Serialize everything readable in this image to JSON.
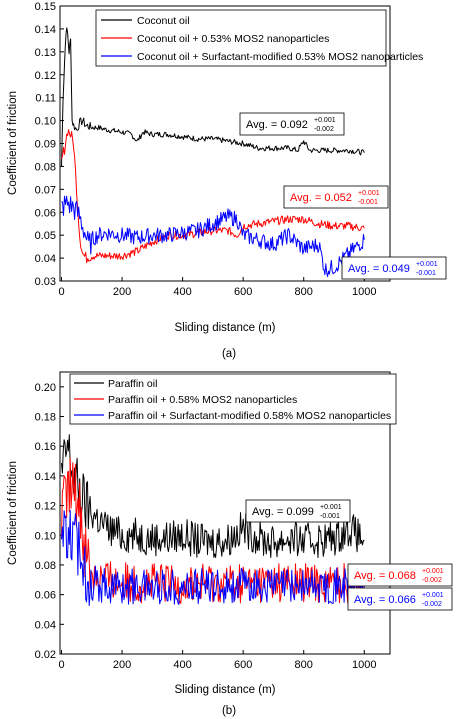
{
  "chart_data": [
    {
      "type": "line",
      "panel_label": "(a)",
      "xlabel": "Sliding distance (m)",
      "ylabel": "Coefficient of friction",
      "xlim": [
        0,
        1000
      ],
      "ylim": [
        0.03,
        0.15
      ],
      "xticks": [
        "0",
        "200",
        "400",
        "600",
        "800",
        "1000"
      ],
      "yticks": [
        "0.03",
        "0.04",
        "0.05",
        "0.06",
        "0.07",
        "0.08",
        "0.09",
        "0.10",
        "0.11",
        "0.12",
        "0.13",
        "0.14",
        "0.15"
      ],
      "legend_position": "top-right",
      "series": [
        {
          "name": "Coconut oil",
          "color": "#000000",
          "x": [
            0,
            5,
            10,
            15,
            20,
            25,
            30,
            35,
            40,
            50,
            60,
            70,
            80,
            100,
            120,
            150,
            200,
            230,
            250,
            270,
            300,
            350,
            400,
            450,
            500,
            550,
            600,
            650,
            700,
            750,
            780,
            800,
            820,
            850,
            900,
            950,
            1000
          ],
          "y": [
            0.08,
            0.11,
            0.125,
            0.14,
            0.138,
            0.13,
            0.135,
            0.1,
            0.098,
            0.096,
            0.099,
            0.1,
            0.098,
            0.097,
            0.097,
            0.096,
            0.095,
            0.094,
            0.091,
            0.095,
            0.094,
            0.094,
            0.093,
            0.092,
            0.092,
            0.091,
            0.09,
            0.088,
            0.088,
            0.088,
            0.087,
            0.091,
            0.087,
            0.087,
            0.087,
            0.087,
            0.086
          ]
        },
        {
          "name": "Coconut oil + 0.53% MOS2 nanoparticles",
          "color": "#ff0000",
          "x": [
            0,
            10,
            20,
            30,
            40,
            50,
            60,
            70,
            80,
            90,
            100,
            120,
            150,
            200,
            250,
            300,
            350,
            400,
            450,
            500,
            550,
            580,
            600,
            650,
            700,
            750,
            800,
            850,
            900,
            950,
            1000
          ],
          "y": [
            0.082,
            0.088,
            0.096,
            0.094,
            0.09,
            0.07,
            0.05,
            0.042,
            0.04,
            0.041,
            0.041,
            0.041,
            0.041,
            0.041,
            0.043,
            0.047,
            0.05,
            0.05,
            0.051,
            0.052,
            0.052,
            0.05,
            0.054,
            0.055,
            0.056,
            0.057,
            0.057,
            0.055,
            0.054,
            0.054,
            0.053
          ]
        },
        {
          "name": "Coconut oil + Surfactant-modified 0.53% MOS2 nanoparticles",
          "color": "#0000ff",
          "x": [
            0,
            10,
            20,
            30,
            40,
            50,
            60,
            70,
            80,
            90,
            100,
            120,
            150,
            200,
            250,
            300,
            350,
            400,
            450,
            500,
            550,
            580,
            600,
            650,
            700,
            750,
            800,
            850,
            870,
            900,
            950,
            1000
          ],
          "y": [
            0.062,
            0.063,
            0.064,
            0.063,
            0.062,
            0.06,
            0.058,
            0.054,
            0.05,
            0.045,
            0.048,
            0.05,
            0.051,
            0.05,
            0.049,
            0.05,
            0.05,
            0.051,
            0.052,
            0.055,
            0.058,
            0.057,
            0.05,
            0.048,
            0.046,
            0.05,
            0.044,
            0.046,
            0.035,
            0.036,
            0.042,
            0.048
          ]
        }
      ],
      "annotations": [
        {
          "prefix": "Avg. = ",
          "value": "0.092",
          "sup": "+0.001",
          "sub": "-0.002",
          "color": "#000000"
        },
        {
          "prefix": "Avg. = ",
          "value": "0.052",
          "sup": "+0.001",
          "sub": "-0.001",
          "color": "#ff0000"
        },
        {
          "prefix": "Avg. = ",
          "value": "0.049",
          "sup": "+0.001",
          "sub": "-0.001",
          "color": "#0000ff"
        }
      ]
    },
    {
      "type": "line",
      "panel_label": "(b)",
      "xlabel": "Sliding distance (m)",
      "ylabel": "Coefficient of friction",
      "xlim": [
        0,
        1000
      ],
      "ylim": [
        0.02,
        0.21
      ],
      "xticks": [
        "0",
        "200",
        "400",
        "600",
        "800",
        "1000"
      ],
      "yticks": [
        "0.02",
        "0.04",
        "0.06",
        "0.08",
        "0.10",
        "0.12",
        "0.14",
        "0.16",
        "0.18",
        "0.20"
      ],
      "legend_position": "top-right",
      "series": [
        {
          "name": "Paraffin oil",
          "color": "#000000",
          "x": [
            0,
            20,
            40,
            60,
            80,
            100,
            150,
            200,
            250,
            300,
            350,
            400,
            450,
            500,
            550,
            600,
            650,
            700,
            750,
            800,
            850,
            900,
            950,
            1000
          ],
          "y": [
            0.14,
            0.16,
            0.14,
            0.13,
            0.12,
            0.115,
            0.105,
            0.1,
            0.1,
            0.098,
            0.098,
            0.1,
            0.096,
            0.096,
            0.097,
            0.105,
            0.098,
            0.095,
            0.098,
            0.096,
            0.097,
            0.098,
            0.105,
            0.096
          ]
        },
        {
          "name": "Paraffin oil + 0.58% MOS2 nanoparticles",
          "color": "#ff0000",
          "x": [
            0,
            20,
            40,
            60,
            80,
            100,
            150,
            200,
            300,
            400,
            500,
            600,
            700,
            800,
            900,
            1000
          ],
          "y": [
            0.11,
            0.13,
            0.132,
            0.12,
            0.09,
            0.075,
            0.07,
            0.068,
            0.068,
            0.067,
            0.068,
            0.068,
            0.069,
            0.068,
            0.068,
            0.068
          ]
        },
        {
          "name": "Paraffin oil + Surfactant-modified 0.58% MOS2 nanoparticles",
          "color": "#0000ff",
          "x": [
            0,
            20,
            40,
            60,
            80,
            100,
            150,
            200,
            300,
            400,
            500,
            600,
            700,
            800,
            900,
            1000
          ],
          "y": [
            0.1,
            0.1,
            0.098,
            0.09,
            0.075,
            0.068,
            0.066,
            0.065,
            0.066,
            0.065,
            0.066,
            0.066,
            0.066,
            0.066,
            0.066,
            0.066
          ]
        }
      ],
      "annotations": [
        {
          "prefix": "Avg. = ",
          "value": "0.099",
          "sup": "+0.001",
          "sub": "-0.001",
          "color": "#000000"
        },
        {
          "prefix": "Avg. = ",
          "value": "0.068",
          "sup": "+0.001",
          "sub": "-0.002",
          "color": "#ff0000"
        },
        {
          "prefix": "Avg. = ",
          "value": "0.066",
          "sup": "+0.001",
          "sub": "-0.002",
          "color": "#0000ff"
        }
      ]
    }
  ]
}
